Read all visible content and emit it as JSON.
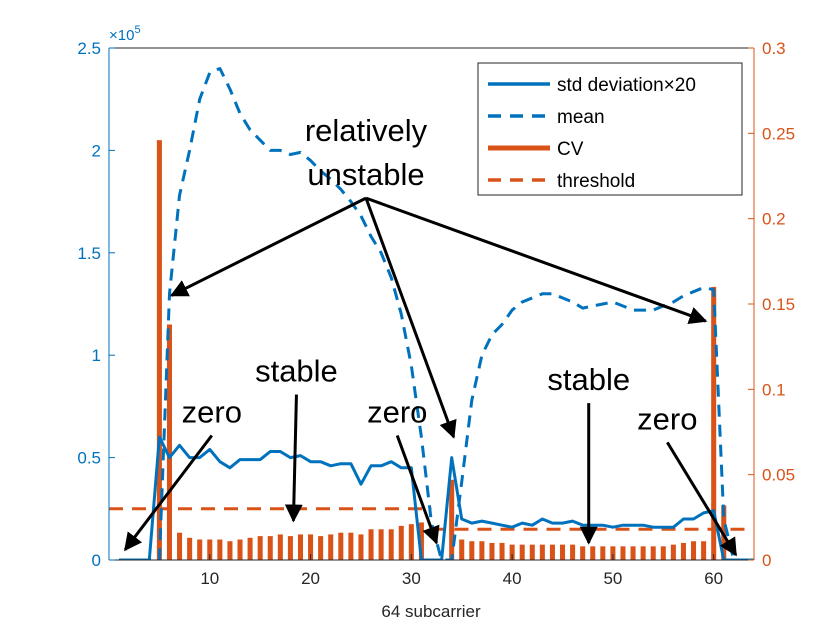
{
  "chart_data": {
    "type": "bar+line",
    "xlabel": "64 subcarrier",
    "xlim": [
      0,
      64
    ],
    "x_ticks": [
      10,
      20,
      30,
      40,
      50,
      60
    ],
    "y_left": {
      "ylim": [
        0,
        250000
      ],
      "ticks": [
        0,
        50000,
        100000,
        150000,
        200000,
        250000
      ],
      "tick_labels": [
        "0",
        "0.5",
        "1",
        "1.5",
        "2",
        "2.5"
      ],
      "exponent_base": "×10",
      "exponent_power": "5",
      "color": "#0072BD"
    },
    "y_right": {
      "ylim": [
        0,
        0.3
      ],
      "ticks": [
        0,
        0.05,
        0.1,
        0.15,
        0.2,
        0.25,
        0.3
      ],
      "tick_labels": [
        "0",
        "0.05",
        "0.1",
        "0.15",
        "0.2",
        "0.25",
        "0.3"
      ],
      "color": "#D95319"
    },
    "legend": {
      "position": "top-right",
      "entries": [
        {
          "label": "std deviation×20",
          "style": "solid-line",
          "color": "#0072BD"
        },
        {
          "label": "mean",
          "style": "dashed-line",
          "color": "#0072BD"
        },
        {
          "label": "CV",
          "style": "thick-line",
          "color": "#D95319"
        },
        {
          "label": "threshold",
          "style": "dashed-line",
          "color": "#D95319"
        }
      ]
    },
    "series": [
      {
        "name": "std deviation×20",
        "axis": "left",
        "kind": "line",
        "color": "#0072BD",
        "x": [
          1,
          2,
          3,
          4,
          5,
          6,
          7,
          8,
          9,
          10,
          11,
          12,
          13,
          14,
          15,
          16,
          17,
          18,
          19,
          20,
          21,
          22,
          23,
          24,
          25,
          26,
          27,
          28,
          29,
          30,
          31,
          32,
          33,
          34,
          35,
          36,
          37,
          38,
          39,
          40,
          41,
          42,
          43,
          44,
          45,
          46,
          47,
          48,
          49,
          50,
          51,
          52,
          53,
          54,
          55,
          56,
          57,
          58,
          59,
          60,
          61,
          62,
          63,
          64
        ],
        "values": [
          0,
          0,
          0,
          0,
          60000,
          50000,
          56000,
          50000,
          50000,
          54000,
          48000,
          45000,
          49000,
          49000,
          49000,
          53000,
          53000,
          50000,
          51000,
          48000,
          48000,
          46000,
          47000,
          47000,
          37000,
          46000,
          46000,
          48000,
          45000,
          45000,
          0,
          0,
          0,
          50000,
          20000,
          18000,
          19000,
          18000,
          17000,
          16000,
          18000,
          17000,
          20000,
          18000,
          18000,
          19000,
          17000,
          17000,
          17000,
          16000,
          17000,
          17000,
          17000,
          16000,
          16000,
          16000,
          20000,
          20000,
          23000,
          24000,
          0,
          0,
          0,
          0
        ]
      },
      {
        "name": "mean",
        "axis": "left",
        "kind": "dashed-line",
        "color": "#0072BD",
        "x": [
          1,
          2,
          3,
          4,
          5,
          6,
          7,
          8,
          9,
          10,
          11,
          12,
          13,
          14,
          15,
          16,
          17,
          18,
          19,
          20,
          21,
          22,
          23,
          24,
          25,
          26,
          27,
          28,
          29,
          30,
          31,
          32,
          33,
          34,
          35,
          36,
          37,
          38,
          39,
          40,
          41,
          42,
          43,
          44,
          45,
          46,
          47,
          48,
          49,
          50,
          51,
          52,
          53,
          54,
          55,
          56,
          57,
          58,
          59,
          60,
          61,
          62,
          63,
          64
        ],
        "values": [
          0,
          0,
          0,
          0,
          0,
          130000,
          178000,
          200000,
          225000,
          238000,
          240000,
          230000,
          218000,
          210000,
          205000,
          200000,
          200000,
          198000,
          199000,
          195000,
          190000,
          186000,
          181000,
          175000,
          168000,
          158000,
          150000,
          138000,
          120000,
          95000,
          60000,
          18000,
          0,
          0,
          38000,
          78000,
          100000,
          110000,
          115000,
          122000,
          126000,
          128000,
          130000,
          130000,
          128000,
          126000,
          123000,
          124000,
          125000,
          126000,
          124000,
          122000,
          122000,
          122000,
          124000,
          126000,
          129000,
          131000,
          133000,
          132000,
          20000,
          0,
          0,
          0
        ]
      },
      {
        "name": "CV",
        "axis": "right",
        "kind": "bar",
        "color": "#D95319",
        "x": [
          1,
          2,
          3,
          4,
          5,
          6,
          7,
          8,
          9,
          10,
          11,
          12,
          13,
          14,
          15,
          16,
          17,
          18,
          19,
          20,
          21,
          22,
          23,
          24,
          25,
          26,
          27,
          28,
          29,
          30,
          31,
          32,
          33,
          34,
          35,
          36,
          37,
          38,
          39,
          40,
          41,
          42,
          43,
          44,
          45,
          46,
          47,
          48,
          49,
          50,
          51,
          52,
          53,
          54,
          55,
          56,
          57,
          58,
          59,
          60,
          61,
          62,
          63,
          64
        ],
        "values": [
          0,
          0,
          0,
          0,
          0.246,
          0.138,
          0.016,
          0.013,
          0.012,
          0.012,
          0.012,
          0.011,
          0.012,
          0.013,
          0.014,
          0.014,
          0.015,
          0.014,
          0.015,
          0.015,
          0.014,
          0.015,
          0.016,
          0.016,
          0.015,
          0.018,
          0.018,
          0.018,
          0.02,
          0.021,
          0.022,
          0,
          0,
          0.047,
          0.012,
          0.011,
          0.011,
          0.01,
          0.01,
          0.009,
          0.009,
          0.009,
          0.009,
          0.009,
          0.009,
          0.009,
          0.008,
          0.008,
          0.008,
          0.008,
          0.008,
          0.008,
          0.008,
          0.008,
          0.008,
          0.009,
          0.01,
          0.011,
          0.011,
          0.16,
          0.032,
          0,
          0,
          0
        ]
      },
      {
        "name": "threshold",
        "axis": "right",
        "kind": "dashed-step",
        "color": "#D95319",
        "segments": [
          {
            "x": [
              0,
              32
            ],
            "value": 0.03
          },
          {
            "x": [
              32,
              64
            ],
            "value": 0.018
          }
        ]
      }
    ],
    "annotations": [
      {
        "lines": [
          "relatively",
          "unstable"
        ],
        "anchor": [
          25.5,
          0.239
        ],
        "arrows_to": [
          [
            6.2,
            0.155
          ],
          [
            34.2,
            0.072
          ],
          [
            59.2,
            0.14
          ]
        ]
      },
      {
        "lines": [
          "stable"
        ],
        "anchor": [
          18.6,
          0.111
        ],
        "arrows_to": [
          [
            18.3,
            0.023
          ]
        ]
      },
      {
        "lines": [
          "zero"
        ],
        "anchor": [
          10.2,
          0.087
        ],
        "arrows_to": [
          [
            1.6,
            0.006
          ]
        ]
      },
      {
        "lines": [
          "zero"
        ],
        "anchor": [
          28.6,
          0.087
        ],
        "arrows_to": [
          [
            32.5,
            0.01
          ]
        ]
      },
      {
        "lines": [
          "stable"
        ],
        "anchor": [
          47.6,
          0.106
        ],
        "arrows_to": [
          [
            47.6,
            0.01
          ]
        ]
      },
      {
        "lines": [
          "zero"
        ],
        "anchor": [
          55.4,
          0.083
        ],
        "arrows_to": [
          [
            62.2,
            0.003
          ]
        ]
      }
    ]
  }
}
